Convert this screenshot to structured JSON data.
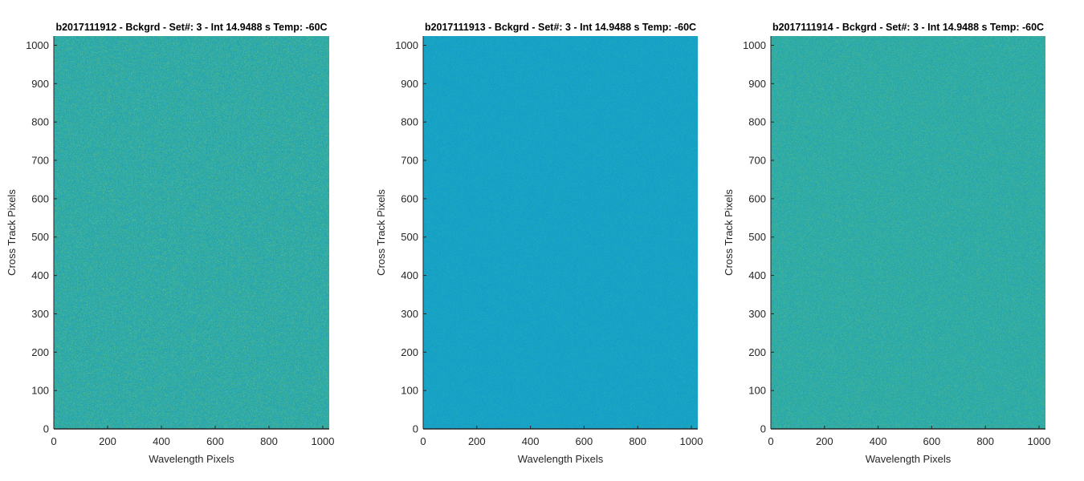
{
  "chart_data": [
    {
      "type": "heatmap",
      "title": "b2017111912 - Bckgrd - Set#: 3 - Int 14.9488 s Temp: -60C",
      "xlabel": "Wavelength Pixels",
      "ylabel": "Cross Track Pixels",
      "xlim": [
        0,
        1024
      ],
      "ylim": [
        0,
        1024
      ],
      "xticks": [
        0,
        200,
        400,
        600,
        800,
        1000
      ],
      "yticks": [
        0,
        100,
        200,
        300,
        400,
        500,
        600,
        700,
        800,
        900,
        1000
      ],
      "grid": false,
      "colors": {
        "base": "#27aba8",
        "noise_light": "#79c37a",
        "noise_dark": "#2191c2"
      },
      "noise_level": 0.55
    },
    {
      "type": "heatmap",
      "title": "b2017111913 - Bckgrd - Set#: 3 - Int 14.9488 s Temp: -60C",
      "xlabel": "Wavelength Pixels",
      "ylabel": "Cross Track Pixels",
      "xlim": [
        0,
        1024
      ],
      "ylim": [
        0,
        1024
      ],
      "xticks": [
        0,
        200,
        400,
        600,
        800,
        1000
      ],
      "yticks": [
        0,
        100,
        200,
        300,
        400,
        500,
        600,
        700,
        800,
        900,
        1000
      ],
      "grid": false,
      "colors": {
        "base": "#14a2c6",
        "noise_light": "#3ab7b0",
        "noise_dark": "#128ecc"
      },
      "noise_level": 0.35
    },
    {
      "type": "heatmap",
      "title": "b2017111914 - Bckgrd - Set#: 3 - Int 14.9488 s Temp: -60C",
      "xlabel": "Wavelength Pixels",
      "ylabel": "Cross Track Pixels",
      "xlim": [
        0,
        1024
      ],
      "ylim": [
        0,
        1024
      ],
      "xticks": [
        0,
        200,
        400,
        600,
        800,
        1000
      ],
      "yticks": [
        0,
        100,
        200,
        300,
        400,
        500,
        600,
        700,
        800,
        900,
        1000
      ],
      "grid": false,
      "colors": {
        "base": "#29aca6",
        "noise_light": "#6dc082",
        "noise_dark": "#1f95c0"
      },
      "noise_level": 0.5
    }
  ]
}
